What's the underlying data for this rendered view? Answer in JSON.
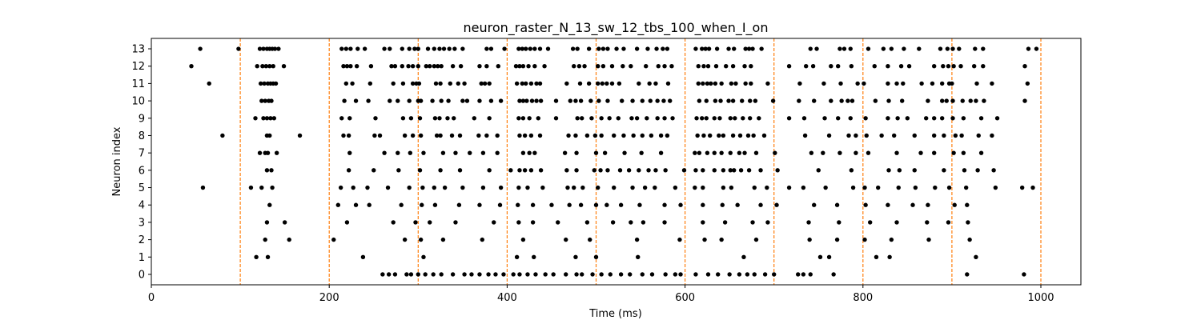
{
  "chart_data": {
    "type": "scatter",
    "title": "neuron_raster_N_13_sw_12_tbs_100_when_I_on",
    "xlabel": "Time (ms)",
    "ylabel": "Neuron index",
    "xlim": [
      0,
      1045
    ],
    "ylim": [
      -0.6,
      13.6
    ],
    "xticks": [
      0,
      200,
      400,
      600,
      800,
      1000
    ],
    "yticks": [
      0,
      1,
      2,
      3,
      4,
      5,
      6,
      7,
      8,
      9,
      10,
      11,
      12,
      13
    ],
    "grid": false,
    "marker_color": "#000000",
    "vline_color": "#ff7f0e",
    "vlines": [
      100,
      200,
      300,
      400,
      500,
      600,
      700,
      800,
      900,
      1000
    ],
    "spikes": [
      {
        "neuron": 13,
        "times": [
          55,
          98,
          122,
          126,
          130,
          133,
          136,
          139,
          143,
          214,
          219,
          224,
          232,
          240,
          262,
          268,
          282,
          290,
          296,
          300,
          311,
          318,
          324,
          329,
          335,
          341,
          350,
          377,
          382,
          397,
          413,
          417,
          421,
          426,
          431,
          437,
          446,
          474,
          479,
          492,
          503,
          508,
          513,
          523,
          531,
          546,
          558,
          568,
          575,
          580,
          612,
          619,
          623,
          627,
          636,
          649,
          655,
          668,
          672,
          676,
          686,
          741,
          748,
          774,
          779,
          786,
          806,
          823,
          832,
          846,
          863,
          887,
          895,
          901,
          908,
          926,
          935,
          986,
          995
        ]
      },
      {
        "neuron": 12,
        "times": [
          45,
          119,
          125,
          129,
          133,
          137,
          149,
          216,
          220,
          224,
          231,
          247,
          270,
          274,
          282,
          289,
          294,
          300,
          309,
          313,
          318,
          322,
          326,
          339,
          348,
          369,
          377,
          390,
          410,
          414,
          418,
          424,
          431,
          442,
          475,
          481,
          487,
          502,
          508,
          518,
          530,
          539,
          556,
          570,
          577,
          585,
          615,
          621,
          626,
          635,
          646,
          654,
          667,
          674,
          717,
          736,
          744,
          764,
          772,
          787,
          813,
          828,
          843,
          852,
          880,
          890,
          896,
          902,
          910,
          925,
          935,
          982
        ]
      },
      {
        "neuron": 11,
        "times": [
          65,
          123,
          127,
          131,
          134,
          137,
          140,
          219,
          226,
          246,
          272,
          283,
          294,
          298,
          301,
          320,
          325,
          336,
          345,
          352,
          371,
          375,
          380,
          411,
          417,
          421,
          427,
          433,
          437,
          467,
          482,
          492,
          502,
          507,
          512,
          518,
          526,
          548,
          560,
          567,
          581,
          615,
          620,
          625,
          629,
          634,
          641,
          652,
          657,
          668,
          674,
          693,
          729,
          756,
          775,
          794,
          801,
          828,
          838,
          845,
          866,
          878,
          889,
          897,
          900,
          928,
          945,
          985
        ]
      },
      {
        "neuron": 10,
        "times": [
          124,
          128,
          132,
          135,
          217,
          230,
          244,
          268,
          277,
          290,
          300,
          303,
          316,
          326,
          334,
          350,
          355,
          369,
          382,
          393,
          414,
          418,
          422,
          428,
          433,
          438,
          455,
          471,
          477,
          483,
          494,
          503,
          513,
          529,
          541,
          552,
          561,
          569,
          576,
          583,
          616,
          624,
          634,
          640,
          649,
          654,
          664,
          673,
          679,
          699,
          728,
          745,
          764,
          776,
          783,
          788,
          814,
          829,
          844,
          873,
          889,
          894,
          901,
          912,
          921,
          927,
          936,
          982
        ]
      },
      {
        "neuron": 9,
        "times": [
          117,
          126,
          130,
          134,
          138,
          214,
          223,
          252,
          283,
          292,
          302,
          319,
          324,
          333,
          340,
          363,
          380,
          413,
          418,
          425,
          435,
          455,
          479,
          484,
          495,
          506,
          515,
          525,
          540,
          546,
          557,
          569,
          577,
          586,
          613,
          619,
          624,
          633,
          639,
          651,
          656,
          665,
          673,
          683,
          717,
          734,
          757,
          772,
          786,
          803,
          828,
          839,
          850,
          871,
          880,
          889,
          901,
          913,
          933,
          951
        ]
      },
      {
        "neuron": 8,
        "times": [
          80,
          130,
          133,
          167,
          216,
          222,
          251,
          257,
          285,
          294,
          303,
          321,
          325,
          338,
          347,
          368,
          377,
          389,
          414,
          420,
          427,
          437,
          469,
          477,
          490,
          499,
          506,
          520,
          531,
          542,
          552,
          562,
          573,
          580,
          614,
          621,
          628,
          638,
          643,
          654,
          662,
          671,
          677,
          689,
          735,
          762,
          784,
          792,
          804,
          821,
          835,
          858,
          880,
          891,
          904,
          911,
          930,
          945
        ]
      },
      {
        "neuron": 7,
        "times": [
          122,
          128,
          131,
          141,
          223,
          262,
          277,
          291,
          306,
          328,
          342,
          358,
          373,
          389,
          418,
          425,
          431,
          465,
          478,
          500,
          510,
          532,
          551,
          573,
          611,
          616,
          625,
          633,
          641,
          651,
          661,
          667,
          680,
          701,
          742,
          755,
          774,
          792,
          806,
          838,
          865,
          880,
          902,
          913,
          933
        ]
      },
      {
        "neuron": 6,
        "times": [
          130,
          135,
          222,
          250,
          278,
          302,
          325,
          347,
          380,
          404,
          414,
          420,
          427,
          438,
          467,
          478,
          498,
          505,
          513,
          527,
          537,
          548,
          559,
          567,
          578,
          599,
          612,
          620,
          633,
          643,
          651,
          655,
          663,
          672,
          685,
          704,
          750,
          787,
          829,
          841,
          858,
          891,
          914,
          929,
          947
        ]
      },
      {
        "neuron": 5,
        "times": [
          58,
          112,
          124,
          136,
          213,
          227,
          243,
          266,
          290,
          305,
          318,
          330,
          350,
          373,
          393,
          413,
          423,
          440,
          468,
          475,
          485,
          502,
          520,
          541,
          555,
          566,
          589,
          611,
          620,
          643,
          652,
          678,
          692,
          717,
          733,
          758,
          789,
          802,
          817,
          840,
          859,
          881,
          897,
          916,
          949,
          979,
          991
        ]
      },
      {
        "neuron": 4,
        "times": [
          133,
          210,
          230,
          245,
          281,
          304,
          319,
          346,
          369,
          392,
          412,
          429,
          450,
          470,
          483,
          500,
          512,
          528,
          549,
          577,
          595,
          620,
          642,
          659,
          685,
          703,
          745,
          771,
          803,
          828,
          856,
          873,
          903,
          917
        ]
      },
      {
        "neuron": 3,
        "times": [
          130,
          150,
          220,
          272,
          297,
          313,
          342,
          385,
          413,
          429,
          457,
          490,
          519,
          539,
          553,
          577,
          620,
          645,
          676,
          693,
          739,
          773,
          808,
          838,
          872,
          896,
          918
        ]
      },
      {
        "neuron": 2,
        "times": [
          128,
          155,
          205,
          285,
          303,
          328,
          372,
          418,
          466,
          493,
          546,
          594,
          622,
          641,
          680,
          740,
          771,
          802,
          832,
          874,
          920
        ]
      },
      {
        "neuron": 1,
        "times": [
          118,
          131,
          238,
          306,
          411,
          430,
          477,
          500,
          547,
          666,
          752,
          762,
          815,
          830,
          927
        ]
      },
      {
        "neuron": 0,
        "times": [
          260,
          267,
          274,
          287,
          292,
          300,
          308,
          317,
          326,
          339,
          352,
          360,
          369,
          379,
          387,
          396,
          407,
          414,
          423,
          432,
          443,
          452,
          466,
          478,
          484,
          496,
          506,
          516,
          528,
          538,
          552,
          563,
          578,
          589,
          595,
          612,
          626,
          637,
          650,
          661,
          670,
          678,
          690,
          700,
          727,
          733,
          741,
          767,
          917,
          981
        ]
      }
    ]
  }
}
